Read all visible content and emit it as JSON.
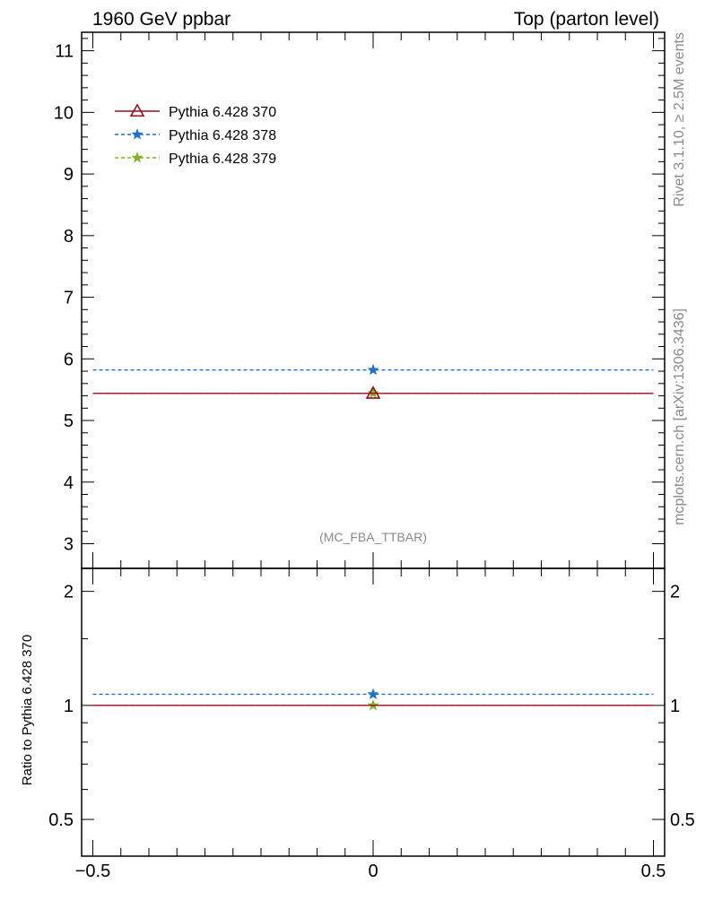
{
  "header": {
    "left": "1960 GeV ppbar",
    "right": "Top (parton level)"
  },
  "side_text": {
    "rivet": "Rivet 3.1.10, ≥ 2.5M events",
    "mcplots": "mcplots.cern.ch [arXiv:1306.3436]"
  },
  "analysis_tag": "(MC_FBA_TTBAR)",
  "chart_data": [
    {
      "type": "scatter",
      "panel": "main",
      "xlim": [
        -0.52,
        0.52
      ],
      "ylim": [
        2.6,
        11.3
      ],
      "yticks_major": [
        3,
        4,
        5,
        6,
        7,
        8,
        9,
        10,
        11
      ],
      "ytick_labels": [
        "3",
        "4",
        "5",
        "6",
        "7",
        "8",
        "9",
        "10",
        "11"
      ],
      "ylabel": "",
      "xlabel": "",
      "grid": false,
      "legend_position": "top-left",
      "series": [
        {
          "name": "Pythia 6.428 370",
          "color": "#9b0d1e",
          "line": "solid",
          "marker": "open-triangle",
          "x": [
            0
          ],
          "xerr": [
            0.5
          ],
          "y": [
            5.44
          ]
        },
        {
          "name": "Pythia 6.428 378",
          "color": "#1f6fd1",
          "line": "dashed",
          "marker": "star",
          "x": [
            0
          ],
          "xerr": [
            0.5
          ],
          "y": [
            5.82
          ]
        },
        {
          "name": "Pythia 6.428 379",
          "color": "#7fb522",
          "line": "dashed",
          "marker": "star",
          "x": [
            0
          ],
          "xerr": [
            0.5
          ],
          "y": [
            5.44
          ]
        }
      ]
    },
    {
      "type": "scatter",
      "panel": "ratio",
      "scale": "log",
      "xlim": [
        -0.52,
        0.52
      ],
      "ylim": [
        0.4,
        2.3
      ],
      "yticks_major": [
        0.5,
        1,
        2
      ],
      "ytick_labels": [
        "0.5",
        "1",
        "2"
      ],
      "xticks_major": [
        -0.5,
        0,
        0.5
      ],
      "xtick_labels": [
        "−0.5",
        "0",
        "0.5"
      ],
      "ylabel": "Ratio to Pythia 6.428 370",
      "xlabel": "",
      "grid": false,
      "series": [
        {
          "name": "Pythia 6.428 370",
          "color": "#9b0d1e",
          "line": "solid",
          "marker": "none",
          "x": [
            0
          ],
          "xerr": [
            0.5
          ],
          "y": [
            1.0
          ]
        },
        {
          "name": "Pythia 6.428 378",
          "color": "#1f6fd1",
          "line": "dashed",
          "marker": "star",
          "x": [
            0
          ],
          "xerr": [
            0.5
          ],
          "y": [
            1.07
          ]
        },
        {
          "name": "Pythia 6.428 379",
          "color": "#7fb522",
          "line": "dashed",
          "marker": "star",
          "x": [
            0
          ],
          "xerr": [
            0.5
          ],
          "y": [
            1.0
          ]
        }
      ]
    }
  ]
}
